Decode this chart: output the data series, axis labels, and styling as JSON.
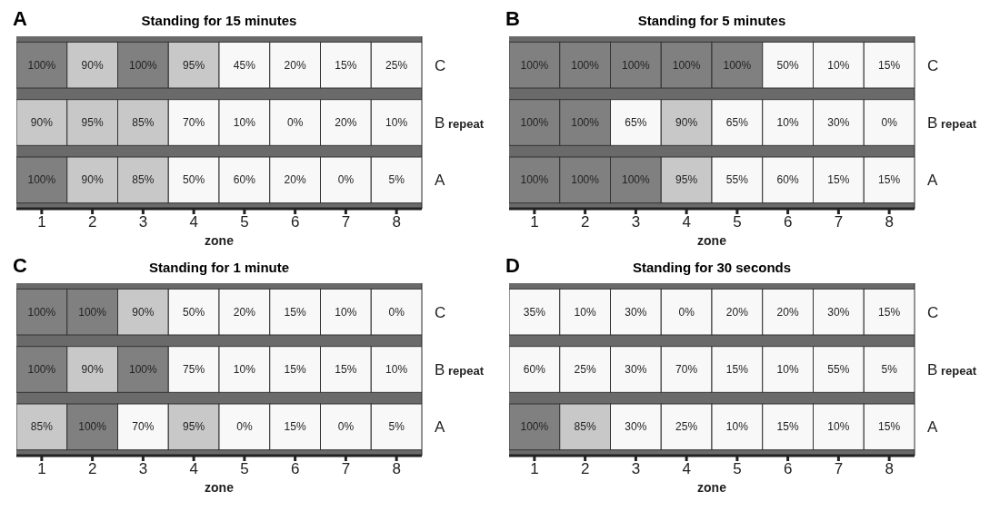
{
  "chart_data": [
    {
      "type": "heatmap",
      "title": "Standing for 15 minutes",
      "xlabel": "zone",
      "annotations": [
        "A"
      ],
      "categories": [
        "1",
        "2",
        "3",
        "4",
        "5",
        "6",
        "7",
        "8"
      ],
      "y_categories": [
        "C",
        "B repeat",
        "A"
      ],
      "cells": [
        [
          100,
          90,
          100,
          95,
          45,
          20,
          15,
          25
        ],
        [
          90,
          95,
          85,
          70,
          10,
          0,
          20,
          10
        ],
        [
          100,
          90,
          85,
          50,
          60,
          20,
          0,
          5
        ]
      ],
      "cell_labels": [
        [
          "100%",
          "90%",
          "100%",
          "95%",
          "45%",
          "20%",
          "15%",
          "25%"
        ],
        [
          "90%",
          "95%",
          "85%",
          "70%",
          "10%",
          "0%",
          "20%",
          "10%"
        ],
        [
          "100%",
          "90%",
          "85%",
          "50%",
          "60%",
          "20%",
          "0%",
          "5%"
        ]
      ],
      "colors": [
        "#f8f8f8",
        "#c8c8c8",
        "#808080"
      ]
    },
    {
      "type": "heatmap",
      "title": "Standing for 5 minutes",
      "xlabel": "zone",
      "annotations": [
        "B"
      ],
      "categories": [
        "1",
        "2",
        "3",
        "4",
        "5",
        "6",
        "7",
        "8"
      ],
      "y_categories": [
        "C",
        "B repeat",
        "A"
      ],
      "cells": [
        [
          100,
          100,
          100,
          100,
          100,
          50,
          10,
          15
        ],
        [
          100,
          100,
          65,
          90,
          65,
          10,
          30,
          0
        ],
        [
          100,
          100,
          100,
          95,
          55,
          60,
          15,
          15
        ]
      ],
      "cell_labels": [
        [
          "100%",
          "100%",
          "100%",
          "100%",
          "100%",
          "50%",
          "10%",
          "15%"
        ],
        [
          "100%",
          "100%",
          "65%",
          "90%",
          "65%",
          "10%",
          "30%",
          "0%"
        ],
        [
          "100%",
          "100%",
          "100%",
          "95%",
          "55%",
          "60%",
          "15%",
          "15%"
        ]
      ],
      "colors": [
        "#f8f8f8",
        "#c8c8c8",
        "#808080"
      ]
    },
    {
      "type": "heatmap",
      "title": "Standing for 1 minute",
      "xlabel": "zone",
      "annotations": [
        "C"
      ],
      "categories": [
        "1",
        "2",
        "3",
        "4",
        "5",
        "6",
        "7",
        "8"
      ],
      "y_categories": [
        "C",
        "B repeat",
        "A"
      ],
      "cells": [
        [
          100,
          100,
          90,
          50,
          20,
          15,
          10,
          0
        ],
        [
          100,
          90,
          100,
          75,
          10,
          15,
          15,
          10
        ],
        [
          85,
          100,
          70,
          95,
          0,
          15,
          0,
          5
        ]
      ],
      "cell_labels": [
        [
          "100%",
          "100%",
          "90%",
          "50%",
          "20%",
          "15%",
          "10%",
          "0%"
        ],
        [
          "100%",
          "90%",
          "100%",
          "75%",
          "10%",
          "15%",
          "15%",
          "10%"
        ],
        [
          "85%",
          "100%",
          "70%",
          "95%",
          "0%",
          "15%",
          "0%",
          "5%"
        ]
      ],
      "colors": [
        "#f8f8f8",
        "#c8c8c8",
        "#808080"
      ]
    },
    {
      "type": "heatmap",
      "title": "Standing for 30 seconds",
      "xlabel": "zone",
      "annotations": [
        "D"
      ],
      "categories": [
        "1",
        "2",
        "3",
        "4",
        "5",
        "6",
        "7",
        "8"
      ],
      "y_categories": [
        "C",
        "B repeat",
        "A"
      ],
      "cells": [
        [
          35,
          10,
          30,
          0,
          20,
          20,
          30,
          15
        ],
        [
          60,
          25,
          30,
          70,
          15,
          10,
          55,
          5
        ],
        [
          100,
          85,
          30,
          25,
          10,
          15,
          10,
          15
        ]
      ],
      "cell_labels": [
        [
          "35%",
          "10%",
          "30%",
          "0%",
          "20%",
          "20%",
          "30%",
          "15%"
        ],
        [
          "60%",
          "25%",
          "30%",
          "70%",
          "15%",
          "10%",
          "55%",
          "5%"
        ],
        [
          "100%",
          "85%",
          "30%",
          "25%",
          "10%",
          "15%",
          "10%",
          "15%"
        ]
      ],
      "colors": [
        "#f8f8f8",
        "#c8c8c8",
        "#808080"
      ]
    }
  ]
}
